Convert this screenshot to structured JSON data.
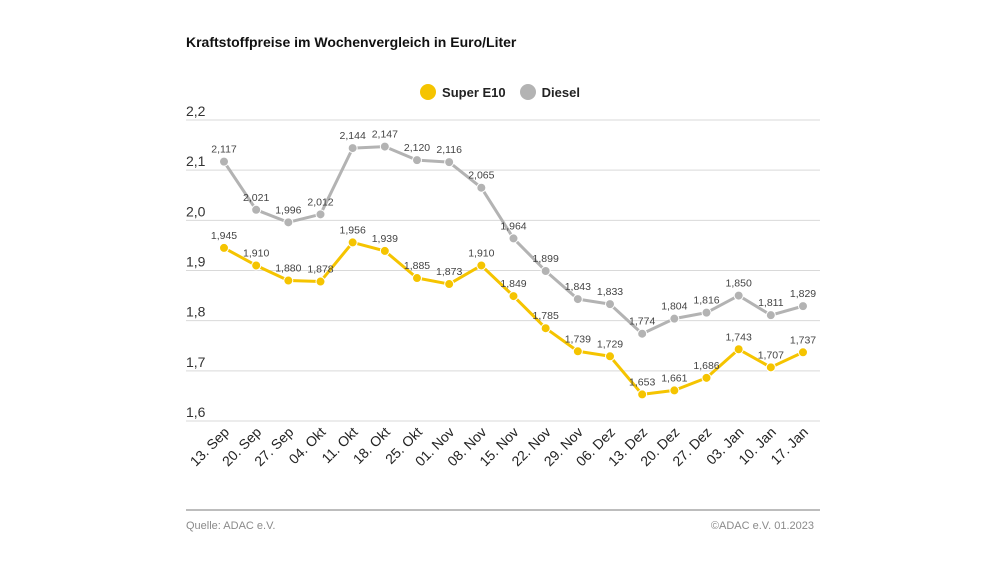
{
  "title": "Kraftstoffpreise im Wochenvergleich in Euro/Liter",
  "source": "Quelle: ADAC e.V.",
  "copyright": "©ADAC e.V.  01.2023",
  "colors": {
    "super": "#f5c400",
    "diesel": "#b3b3b3",
    "grid": "#d9d9d9",
    "label": "#444444"
  },
  "chart_data": {
    "type": "line",
    "title": "Kraftstoffpreise im Wochenvergleich in Euro/Liter",
    "xlabel": "",
    "ylabel": "",
    "ylim": [
      1.6,
      2.2
    ],
    "yticks": [
      1.6,
      1.7,
      1.8,
      1.9,
      2.0,
      2.1,
      2.2
    ],
    "ytick_labels": [
      "1,6",
      "1,7",
      "1,8",
      "1,9",
      "2,0",
      "2,1",
      "2,2"
    ],
    "grid": true,
    "legend_position": "top-center",
    "categories": [
      "13. Sep",
      "20. Sep",
      "27. Sep",
      "04. Okt",
      "11. Okt",
      "18. Okt",
      "25. Okt",
      "01. Nov",
      "08. Nov",
      "15. Nov",
      "22. Nov",
      "29. Nov",
      "06. Dez",
      "13. Dez",
      "20. Dez",
      "27. Dez",
      "03. Jan",
      "10. Jan",
      "17. Jan"
    ],
    "series": [
      {
        "name": "Super E10",
        "values": [
          1.945,
          1.91,
          1.88,
          1.878,
          1.956,
          1.939,
          1.885,
          1.873,
          1.91,
          1.849,
          1.785,
          1.739,
          1.729,
          1.653,
          1.661,
          1.686,
          1.743,
          1.707,
          1.737
        ],
        "labels": [
          "1,945",
          "1,910",
          "1,880",
          "1,878",
          "1,956",
          "1,939",
          "1,885",
          "1,873",
          "1,910",
          "1,849",
          "1,785",
          "1,739",
          "1,729",
          "1,653",
          "1,661",
          "1,686",
          "1,743",
          "1,707",
          "1,737"
        ]
      },
      {
        "name": "Diesel",
        "values": [
          2.117,
          2.021,
          1.996,
          2.012,
          2.144,
          2.147,
          2.12,
          2.116,
          2.065,
          1.964,
          1.899,
          1.843,
          1.833,
          1.774,
          1.804,
          1.816,
          1.85,
          1.811,
          1.829
        ],
        "labels": [
          "2,117",
          "2,021",
          "1,996",
          "2,012",
          "2,144",
          "2,147",
          "2,120",
          "2,116",
          "2,065",
          "1,964",
          "1,899",
          "1,843",
          "1,833",
          "1,774",
          "1,804",
          "1,816",
          "1,850",
          "1,811",
          "1,829"
        ]
      }
    ]
  }
}
